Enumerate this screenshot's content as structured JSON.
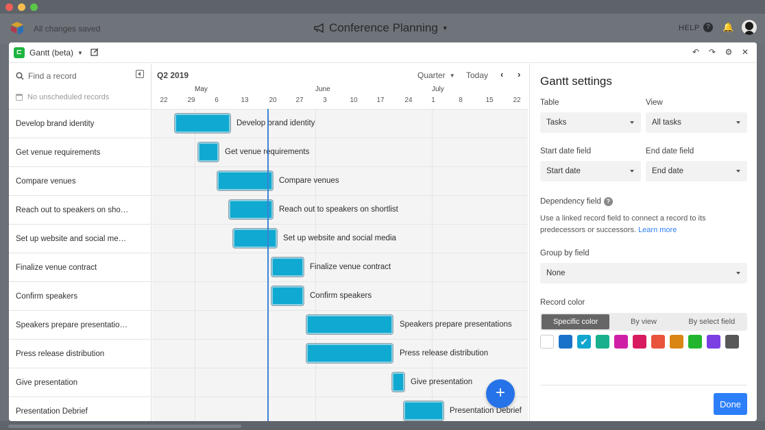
{
  "window": {
    "app_status": "All changes saved",
    "base_title": "Conference Planning",
    "help_label": "HELP"
  },
  "panel": {
    "app_name": "Gantt (beta)"
  },
  "records": {
    "search_placeholder": "Find a record",
    "unscheduled": "No unscheduled records",
    "rows": [
      "Develop brand identity",
      "Get venue requirements",
      "Compare venues",
      "Reach out to speakers on sho…",
      "Set up website and social me…",
      "Finalize venue contract",
      "Confirm speakers",
      "Speakers prepare presentatio…",
      "Press release distribution",
      "Give presentation",
      "Presentation Debrief"
    ]
  },
  "timeline": {
    "period": "Q2 2019",
    "zoom": "Quarter",
    "today": "Today",
    "months": [
      "May",
      "June",
      "July"
    ],
    "days": [
      "22",
      "29",
      "6",
      "13",
      "20",
      "27",
      "3",
      "10",
      "17",
      "24",
      "1",
      "8",
      "15",
      "22"
    ],
    "bars": [
      "Develop brand identity",
      "Get venue requirements",
      "Compare venues",
      "Reach out to speakers on shortlist",
      "Set up website and social media",
      "Finalize venue contract",
      "Confirm speakers",
      "Speakers prepare presentations",
      "Press release distribution",
      "Give presentation",
      "Presentation Debrief"
    ]
  },
  "settings": {
    "title": "Gantt settings",
    "table_label": "Table",
    "table_value": "Tasks",
    "view_label": "View",
    "view_value": "All tasks",
    "start_label": "Start date field",
    "start_value": "Start date",
    "end_label": "End date field",
    "end_value": "End date",
    "dependency_label": "Dependency field",
    "dependency_desc": "Use a linked record field to connect a record to its predecessors or successors.",
    "learn_more": "Learn more",
    "group_label": "Group by field",
    "group_value": "None",
    "color_label": "Record color",
    "color_modes": [
      "Specific color",
      "By view",
      "By select field"
    ],
    "colors": [
      "#ffffff",
      "#1a73c9",
      "#12a5cf",
      "#19b08d",
      "#d01fa7",
      "#d81b60",
      "#e8553a",
      "#d98614",
      "#22b52d",
      "#7b3fe4",
      "#585858"
    ],
    "selected_color": "#12a5cf",
    "done": "Done"
  }
}
